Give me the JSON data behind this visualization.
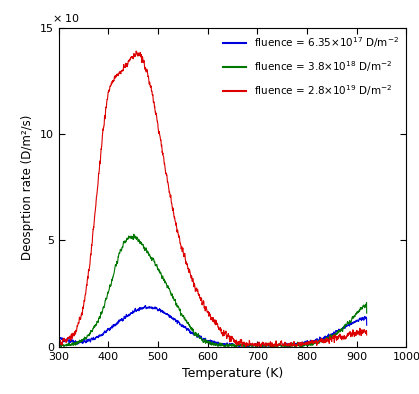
{
  "xlabel": "Temperature (K)",
  "ylabel": "Deosprtion rate (D/m²/s)",
  "xlim": [
    300,
    1000
  ],
  "ylim": [
    0,
    15
  ],
  "colors": {
    "blue": "#0000dd",
    "green": "#007700",
    "red": "#dd0000"
  },
  "legend_labels": [
    "fluence = 6.35×10$^{17}$ D/m$^{-2}$",
    "fluence = 3.8×10$^{18}$ D/m$^{-2}$",
    "fluence = 2.8×10$^{19}$ D/m$^{-2}$"
  ],
  "xticks": [
    300,
    400,
    500,
    600,
    700,
    800,
    900,
    1000
  ],
  "yticks": [
    0,
    5,
    10,
    15
  ]
}
